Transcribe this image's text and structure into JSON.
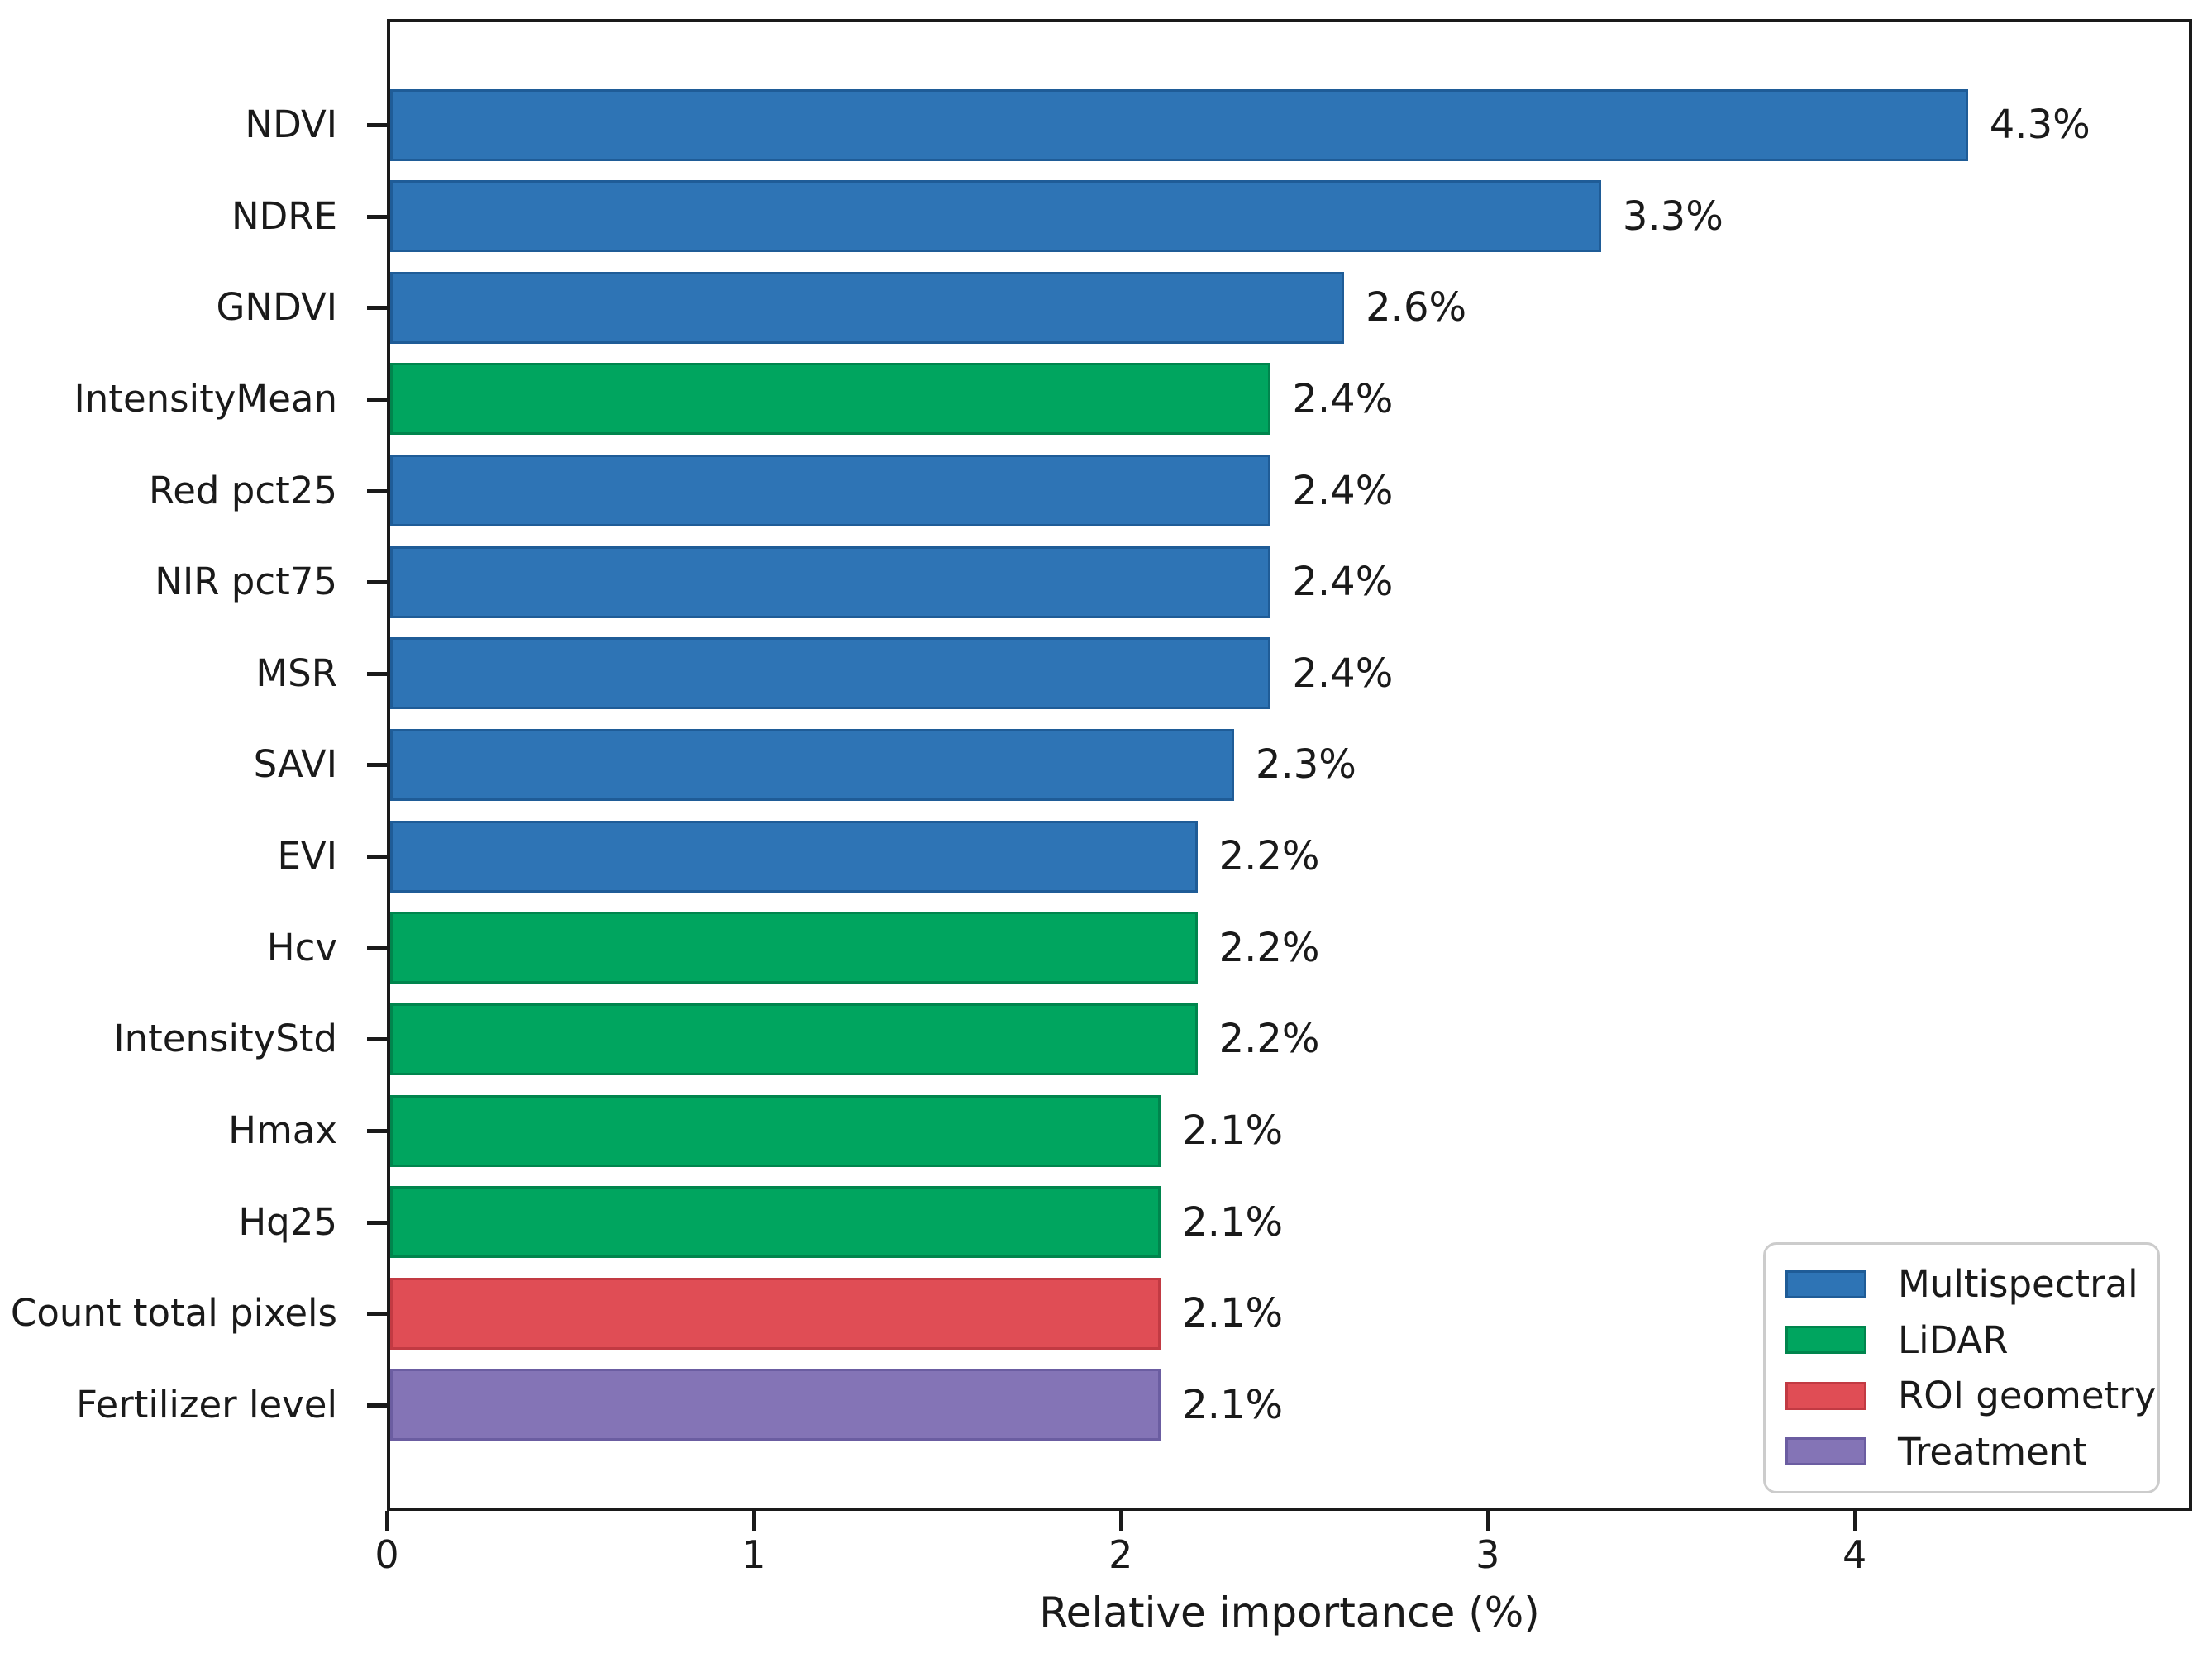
{
  "figure": {
    "background": "#ffffff",
    "text_color": "#1a1a1a"
  },
  "chart_data": {
    "type": "bar",
    "orientation": "horizontal",
    "title": "",
    "xlabel": "Relative importance (%)",
    "ylabel": "",
    "xlim": [
      0,
      4.92
    ],
    "xticks": [
      "0",
      "1",
      "2",
      "3",
      "4"
    ],
    "xtick_values": [
      0,
      1,
      2,
      3,
      4
    ],
    "grid": false,
    "legend_position": "lower right",
    "categories": [
      "NDVI",
      "NDRE",
      "GNDVI",
      "IntensityMean",
      "Red pct25",
      "NIR pct75",
      "MSR",
      "SAVI",
      "EVI",
      "Hcv",
      "IntensityStd",
      "Hmax",
      "Hq25",
      "Count total pixels",
      "Fertilizer level"
    ],
    "values": [
      4.3,
      3.3,
      2.6,
      2.4,
      2.4,
      2.4,
      2.4,
      2.3,
      2.2,
      2.2,
      2.2,
      2.1,
      2.1,
      2.1,
      2.1
    ],
    "value_labels": [
      "4.3%",
      "3.3%",
      "2.6%",
      "2.4%",
      "2.4%",
      "2.4%",
      "2.4%",
      "2.3%",
      "2.2%",
      "2.2%",
      "2.2%",
      "2.1%",
      "2.1%",
      "2.1%",
      "2.1%"
    ],
    "bar_groups": [
      "Multispectral",
      "Multispectral",
      "Multispectral",
      "LiDAR",
      "Multispectral",
      "Multispectral",
      "Multispectral",
      "Multispectral",
      "Multispectral",
      "LiDAR",
      "LiDAR",
      "LiDAR",
      "LiDAR",
      "ROI geometry",
      "Treatment"
    ],
    "legend": [
      {
        "label": "Multispectral",
        "color": "#2e74b5",
        "edge": "#1f5c97"
      },
      {
        "label": "LiDAR",
        "color": "#00a55f",
        "edge": "#00854d"
      },
      {
        "label": "ROI geometry",
        "color": "#e04d55",
        "edge": "#c23a43"
      },
      {
        "label": "Treatment",
        "color": "#8474b6",
        "edge": "#6b5da1"
      }
    ]
  }
}
